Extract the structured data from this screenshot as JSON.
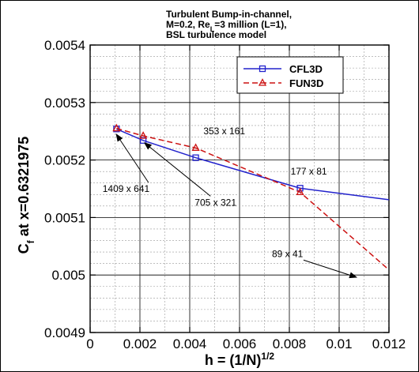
{
  "chart_data": {
    "type": "line",
    "title_lines": [
      {
        "parts": [
          {
            "t": "Turbulent Bump-in-channel,"
          }
        ]
      },
      {
        "parts": [
          {
            "t": "M=0.2, Re"
          },
          {
            "t": "L",
            "sub": true
          },
          {
            "t": "=3 million (L=1),"
          }
        ]
      },
      {
        "parts": [
          {
            "t": "BSL turbulence model"
          }
        ]
      }
    ],
    "xlabel": {
      "parts": [
        {
          "t": "h = (1/N)"
        },
        {
          "t": "1/2",
          "sup": true
        }
      ]
    },
    "ylabel": {
      "parts": [
        {
          "t": "C"
        },
        {
          "t": "f",
          "sub": true
        },
        {
          "t": " at x=0.6321975"
        }
      ]
    },
    "xlim": [
      0,
      0.012
    ],
    "ylim": [
      0.0049,
      0.0054
    ],
    "xticks": [
      {
        "v": 0,
        "label": "0"
      },
      {
        "v": 0.002,
        "label": "0.002"
      },
      {
        "v": 0.004,
        "label": "0.004"
      },
      {
        "v": 0.006,
        "label": "0.006"
      },
      {
        "v": 0.008,
        "label": "0.008"
      },
      {
        "v": 0.01,
        "label": "0.01"
      },
      {
        "v": 0.012,
        "label": "0.012"
      }
    ],
    "yticks": [
      {
        "v": 0.0049,
        "label": "0.0049"
      },
      {
        "v": 0.005,
        "label": "0.005"
      },
      {
        "v": 0.0051,
        "label": "0.0051"
      },
      {
        "v": 0.0052,
        "label": "0.0052"
      },
      {
        "v": 0.0053,
        "label": "0.0053"
      },
      {
        "v": 0.0054,
        "label": "0.0054"
      }
    ],
    "grid": true,
    "legend_placement": "top-right",
    "series": [
      {
        "name": "CFL3D",
        "color": "#2222cc",
        "dash": "solid",
        "marker": "square",
        "x": [
          0.00106,
          0.00213,
          0.00424,
          0.00843,
          0.012
        ],
        "y": [
          0.005254,
          0.005234,
          0.005204,
          0.005151,
          0.005131
        ],
        "marker_count": 4
      },
      {
        "name": "FUN3D",
        "color": "#cc1111",
        "dash": "dashed",
        "marker": "triangle",
        "x": [
          0.00106,
          0.00213,
          0.00424,
          0.00843,
          0.012
        ],
        "y": [
          0.005255,
          0.005242,
          0.005221,
          0.005144,
          0.005009
        ],
        "marker_count": 4
      }
    ],
    "annotations": [
      {
        "text": "1409 x 641",
        "tx": 0.0005,
        "ty": 0.0051445,
        "ax": 0.00105,
        "ay": 0.005245
      },
      {
        "text": "705 x 321",
        "tx": 0.0042,
        "ty": 0.0051207,
        "ax": 0.00218,
        "ay": 0.00523
      },
      {
        "text": "353 x 161",
        "tx": 0.00455,
        "ty": 0.0052445
      },
      {
        "text": "177 x 81",
        "tx": 0.00805,
        "ty": 0.0051745
      },
      {
        "text": "89 x 41",
        "tx": 0.0073,
        "ty": 0.0050315,
        "ax": 0.0107,
        "ay": 0.004996
      }
    ]
  }
}
